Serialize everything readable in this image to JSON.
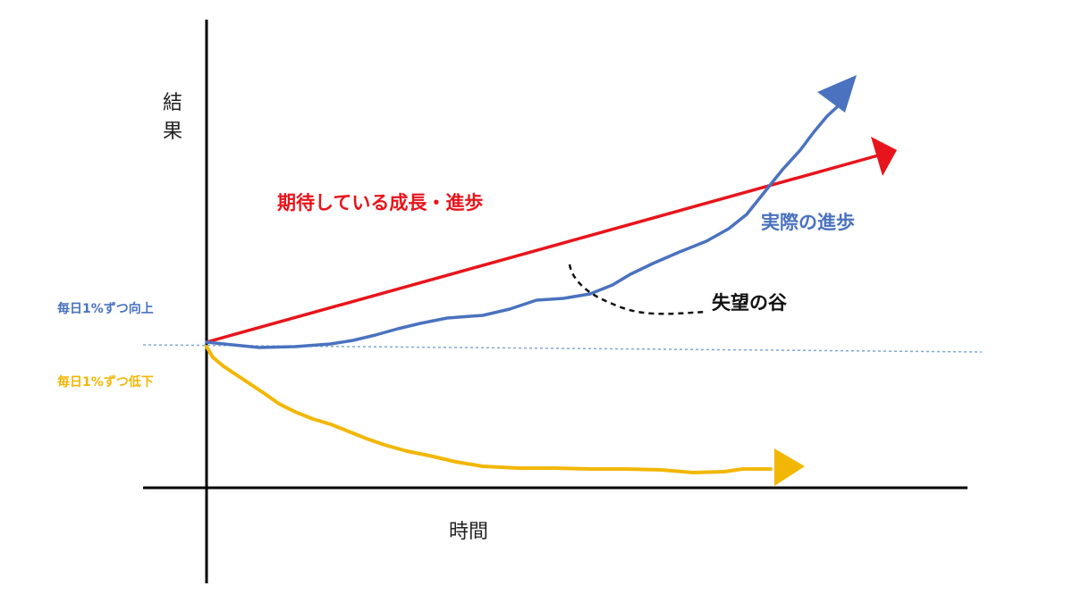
{
  "axes": {
    "y_label": "結果",
    "x_label": "時間"
  },
  "annotations": {
    "expected": "期待している成長・進歩",
    "actual": "実際の進歩",
    "valley": "失望の谷",
    "improve": "毎日1%ずつ向上",
    "decline": "毎日1%ずつ低下"
  },
  "colors": {
    "axis": "#000000",
    "expected": "#e8141b",
    "actual": "#4a72bf",
    "decline": "#f2b705",
    "valley_text": "#111111",
    "baseline": "#7fa7d6"
  }
}
